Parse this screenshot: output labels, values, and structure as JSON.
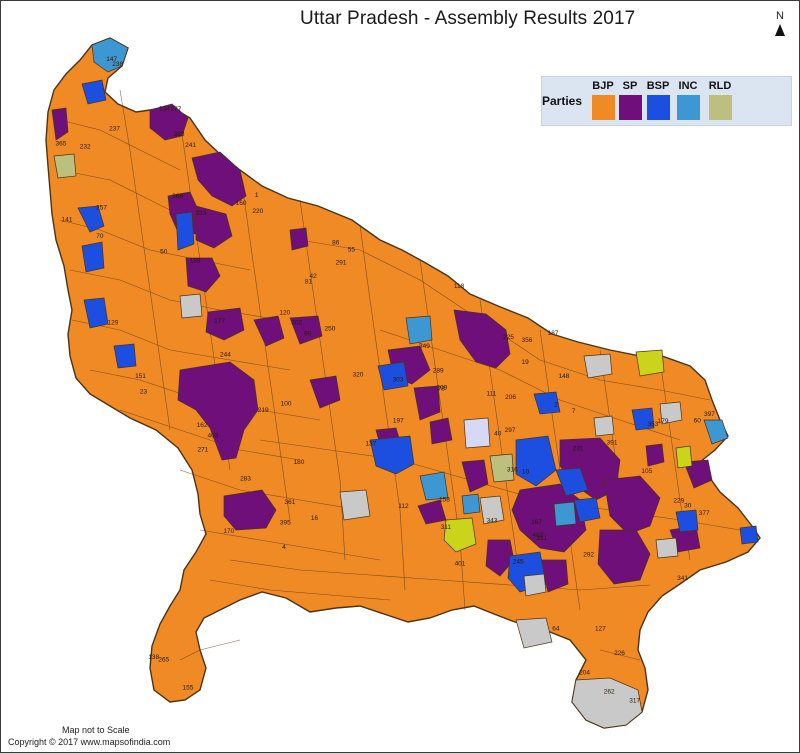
{
  "title": "Uttar Pradesh - Assembly Results 2017",
  "north_label": "N",
  "legend": {
    "heading": "Parties",
    "items": [
      {
        "label": "BJP",
        "color": "#f08a24"
      },
      {
        "label": "SP",
        "color": "#6e0f7a"
      },
      {
        "label": "BSP",
        "color": "#1c4fe0"
      },
      {
        "label": "INC",
        "color": "#3d97d3"
      },
      {
        "label": "RLD",
        "color": "#bdbf7f"
      }
    ]
  },
  "colors": {
    "bjp": "#f08a24",
    "sp": "#6e0f7a",
    "bsp": "#1c4fe0",
    "inc": "#3d97d3",
    "rld": "#bdbf7f",
    "others_grey": "#c9c9c9",
    "apna_dal_yellow": "#c9d41a",
    "independent_lilac": "#d6d8f5",
    "border": "#4a3318"
  },
  "constituency_labels": [
    "1",
    "2",
    "4",
    "7",
    "10",
    "16",
    "19",
    "23",
    "30",
    "40",
    "42",
    "50",
    "55",
    "60",
    "64",
    "70",
    "78",
    "81",
    "86",
    "90",
    "100",
    "105",
    "111",
    "112",
    "118",
    "120",
    "127",
    "129",
    "134",
    "137",
    "138",
    "141",
    "147",
    "148",
    "151",
    "155",
    "158",
    "160",
    "162",
    "167",
    "170",
    "177",
    "179",
    "180",
    "187",
    "189",
    "197",
    "204",
    "206",
    "209",
    "219",
    "220",
    "225",
    "226",
    "229",
    "231",
    "232",
    "237",
    "238",
    "241",
    "244",
    "245",
    "250",
    "257",
    "262",
    "265",
    "271",
    "277",
    "283",
    "289",
    "291",
    "292",
    "297",
    "302",
    "303",
    "311",
    "316",
    "317",
    "320",
    "331",
    "333",
    "341",
    "343",
    "349",
    "353",
    "356",
    "361",
    "365",
    "368",
    "377",
    "383",
    "391",
    "395",
    "397",
    "401",
    "402",
    "403"
  ],
  "footer": {
    "scale_note": "Map not to Scale",
    "copyright": "Copyright © 2017 www.mapsofindia.com"
  }
}
